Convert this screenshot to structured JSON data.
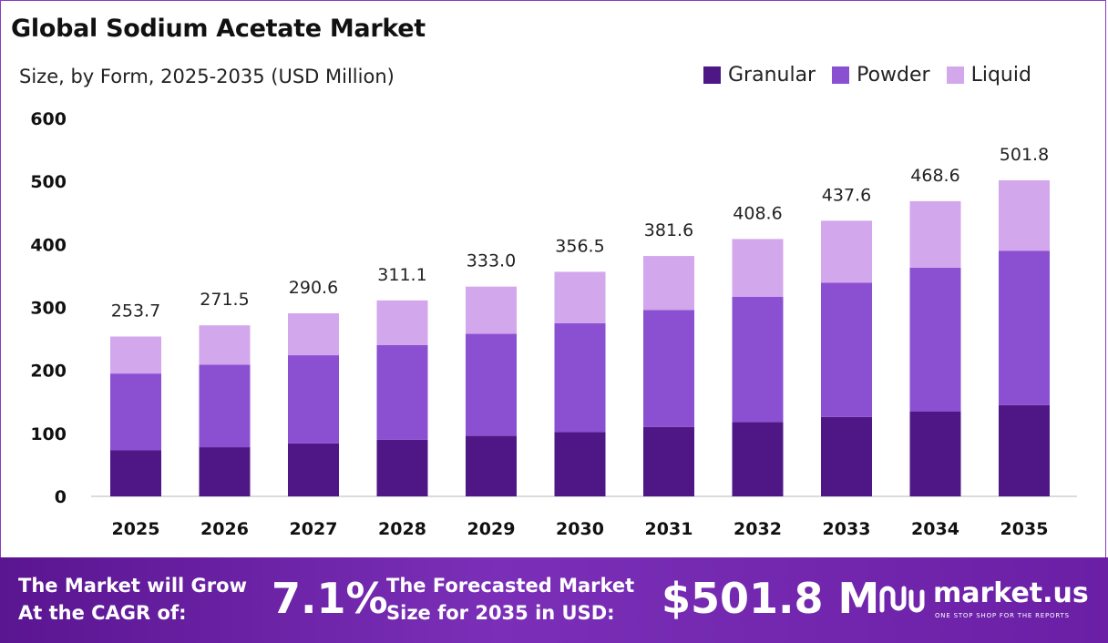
{
  "title": "Global Sodium Acetate Market",
  "subtitle": "Size, by Form, 2025-2035 (USD Million)",
  "colors": {
    "granular": "#4f1786",
    "powder": "#8b4fd2",
    "liquid": "#d3a7ec",
    "footer": "#6a1fa5"
  },
  "chart_data": {
    "type": "bar",
    "stacked": true,
    "categories": [
      "2025",
      "2026",
      "2027",
      "2028",
      "2029",
      "2030",
      "2031",
      "2032",
      "2033",
      "2034",
      "2035"
    ],
    "series": [
      {
        "name": "Granular",
        "values": [
          73,
          78,
          84,
          90,
          96,
          102,
          110,
          118,
          126,
          135,
          145
        ]
      },
      {
        "name": "Powder",
        "values": [
          122,
          131,
          140,
          150,
          162,
          173,
          186,
          199,
          213,
          228,
          245
        ]
      },
      {
        "name": "Liquid",
        "values": [
          58.7,
          62.5,
          66.6,
          71.1,
          75.0,
          81.5,
          85.6,
          91.6,
          98.6,
          105.6,
          111.8
        ]
      }
    ],
    "totals": [
      "253.7",
      "271.5",
      "290.6",
      "311.1",
      "333.0",
      "356.5",
      "381.6",
      "408.6",
      "437.6",
      "468.6",
      "501.8"
    ],
    "yticks": [
      "0",
      "100",
      "200",
      "300",
      "400",
      "500",
      "600"
    ],
    "ylim": [
      0,
      600
    ],
    "legend_position": "top-right",
    "grid": false
  },
  "footer": {
    "cagr_label_line1": "The Market will Grow",
    "cagr_label_line2": "At the CAGR of:",
    "cagr_value": "7.1%",
    "forecast_label_line1": "The Forecasted Market",
    "forecast_label_line2": "Size for 2035 in USD:",
    "forecast_value": "$501.8 M",
    "brand_name": "market.us",
    "brand_tagline": "ONE STOP SHOP FOR THE REPORTS"
  }
}
